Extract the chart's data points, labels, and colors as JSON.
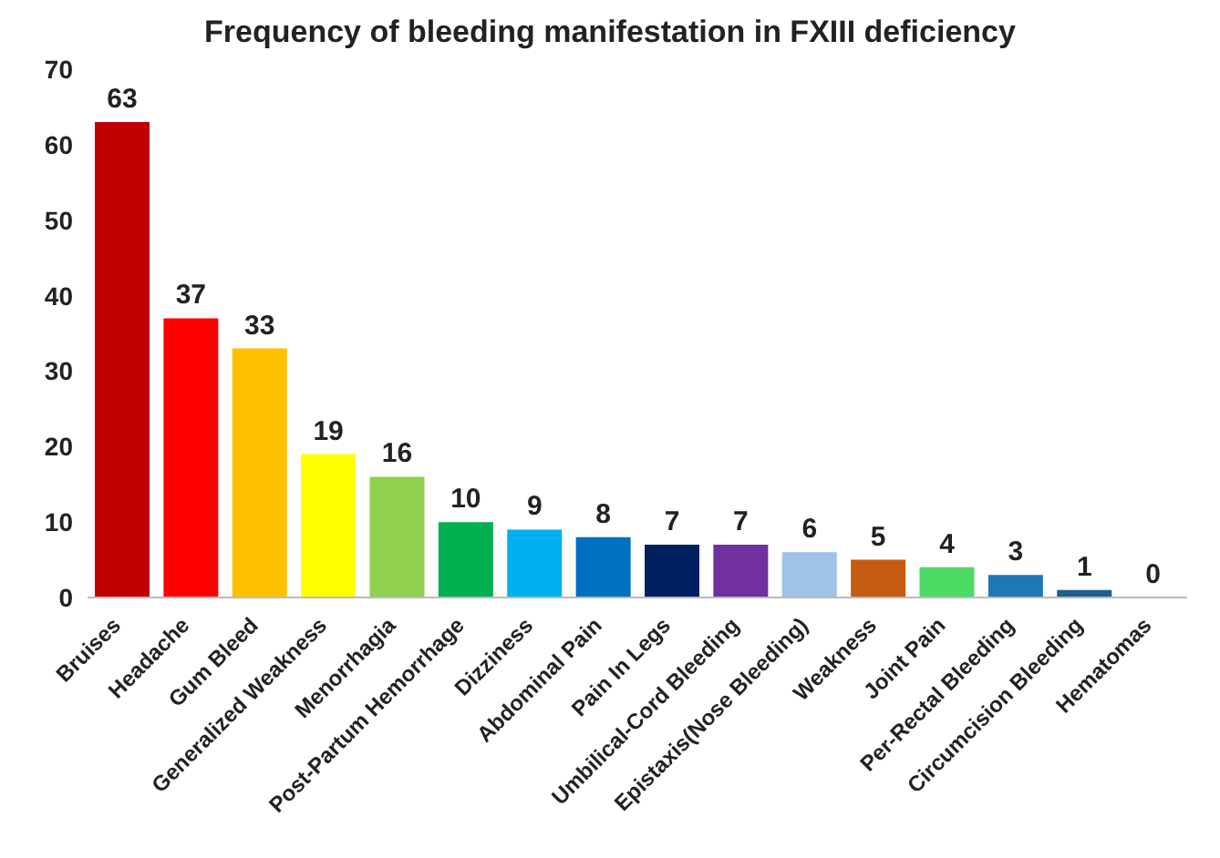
{
  "chart_data": {
    "type": "bar",
    "title": "Frequency of bleeding manifestation in FXIII deficiency",
    "categories": [
      "Bruises",
      "Headache",
      "Gum Bleed",
      "Generalized Weakness",
      "Menorrhagia",
      "Post-Partum Hemorrhage",
      "Dizziness",
      "Abdominal Pain",
      "Pain In Legs",
      "Umbilical-Cord Bleeding",
      "Epistaxis(Nose Bleeding)",
      "Weakness",
      "Joint Pain",
      "Per-Rectal Bleeding",
      "Circumcision Bleeding",
      "Hematomas"
    ],
    "values": [
      63,
      37,
      33,
      19,
      16,
      10,
      9,
      8,
      7,
      7,
      6,
      5,
      4,
      3,
      1,
      0
    ],
    "colors": [
      "#c00000",
      "#ff0000",
      "#ffc000",
      "#ffff00",
      "#92d050",
      "#00b050",
      "#00b0f0",
      "#0070c0",
      "#002060",
      "#7030a0",
      "#9dc3e6",
      "#c55a11",
      "#4cd964",
      "#1f78b4",
      "#1f5f8b",
      "#7f7f7f"
    ],
    "ylim": [
      0,
      70
    ],
    "yticks": [
      0,
      10,
      20,
      30,
      40,
      50,
      60,
      70
    ],
    "grid": false,
    "data_labels": true
  }
}
